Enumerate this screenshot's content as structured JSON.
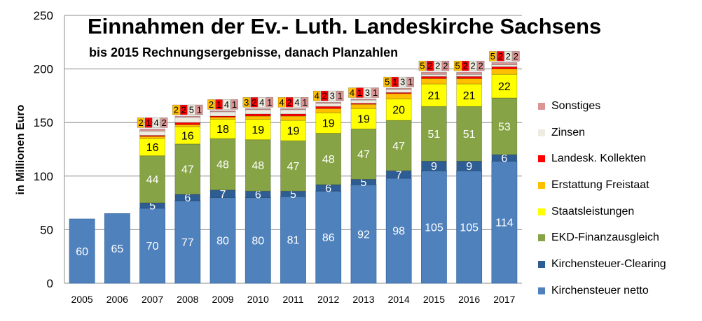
{
  "chart_data": {
    "type": "bar",
    "stacked": true,
    "title": "Einnahmen der Ev.- Luth. Landeskirche Sachsens",
    "subtitle": "bis 2015 Rechnungsergebnisse, danach  Planzahlen",
    "ylabel": "in Millionen Euro",
    "xlabel": "",
    "ylim": [
      0,
      250
    ],
    "yticks": [
      0,
      50,
      100,
      150,
      200,
      250
    ],
    "grid": true,
    "legend_position": "right",
    "categories": [
      "2005",
      "2006",
      "2007",
      "2008",
      "2009",
      "2010",
      "2011",
      "2012",
      "2013",
      "2014",
      "2015",
      "2016",
      "2017"
    ],
    "series": [
      {
        "name": "Kirchensteuer netto",
        "color": "#4F81BD",
        "label_color": "#ffffff",
        "values": [
          60,
          65,
          70,
          77,
          80,
          80,
          81,
          86,
          92,
          98,
          105,
          105,
          114
        ]
      },
      {
        "name": "Kirchensteuer-Clearing",
        "color": "#2E5D94",
        "label_color": "#ffffff",
        "values": [
          0,
          0,
          5,
          6,
          7,
          6,
          5,
          6,
          5,
          7,
          9,
          9,
          6
        ]
      },
      {
        "name": "EKD-Finanzausgleich",
        "color": "#86A345",
        "label_color": "#ffffff",
        "values": [
          0,
          0,
          44,
          47,
          48,
          48,
          47,
          48,
          47,
          47,
          51,
          51,
          53
        ]
      },
      {
        "name": "Staatsleistungen",
        "color": "#FFFF00",
        "label_color": "#000000",
        "values": [
          0,
          0,
          16,
          16,
          18,
          19,
          19,
          19,
          19,
          20,
          21,
          21,
          22
        ]
      },
      {
        "name": "Erstattung Freistaat",
        "color": "#FFC000",
        "label_color": "#000000",
        "values": [
          0,
          0,
          2,
          2,
          2,
          3,
          4,
          4,
          4,
          5,
          5,
          5,
          5
        ]
      },
      {
        "name": "Landesk. Kollekten",
        "color": "#FF0000",
        "label_color": "#000000",
        "values": [
          0,
          0,
          1,
          2,
          1,
          2,
          2,
          2,
          1,
          1,
          2,
          2,
          2
        ]
      },
      {
        "name": "Zinsen",
        "color": "#EEECE1",
        "label_color": "#000000",
        "values": [
          0,
          0,
          4,
          5,
          4,
          4,
          4,
          3,
          3,
          3,
          2,
          2,
          2
        ]
      },
      {
        "name": "Sonstiges",
        "color": "#D99694",
        "label_color": "#000000",
        "values": [
          0,
          0,
          2,
          1,
          1,
          1,
          1,
          1,
          1,
          1,
          2,
          2,
          2
        ]
      }
    ]
  }
}
